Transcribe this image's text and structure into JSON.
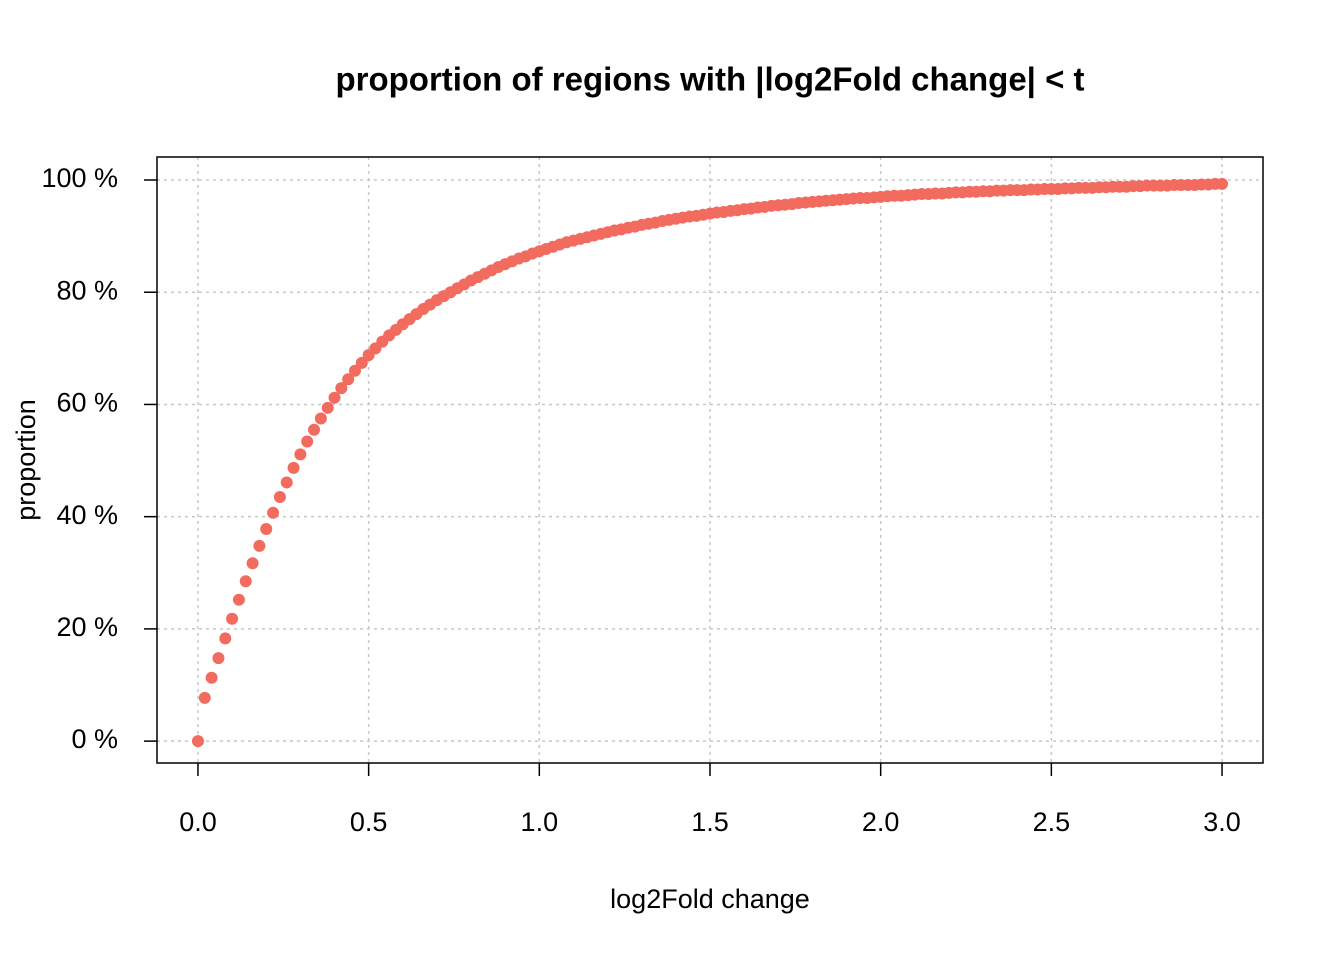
{
  "chart_data": {
    "type": "scatter",
    "title": "proportion of regions with |log2Fold change| < t",
    "xlabel": "log2Fold change",
    "ylabel": "proportion",
    "color": "#f26b5f",
    "grid": true,
    "xlim": [
      -0.12,
      3.12
    ],
    "ylim": [
      -3.9,
      104.1
    ],
    "xticks": [
      {
        "value": 0,
        "label": "0.0"
      },
      0.5,
      {
        "value": 1,
        "label": "1.0"
      },
      1.5,
      {
        "value": 2,
        "label": "2.0"
      },
      2.5,
      {
        "value": 3,
        "label": "3.0"
      }
    ],
    "yticks": [
      {
        "value": 0,
        "label": "0 %"
      },
      {
        "value": 20,
        "label": "20 %"
      },
      {
        "value": 40,
        "label": "40 %"
      },
      {
        "value": 60,
        "label": "60 %"
      },
      {
        "value": 80,
        "label": "80 %"
      },
      {
        "value": 100,
        "label": "100 %"
      }
    ],
    "x": [
      0,
      0.02,
      0.04,
      0.06,
      0.08,
      0.1,
      0.12,
      0.14,
      0.16,
      0.18,
      0.2,
      0.22,
      0.24,
      0.26,
      0.28,
      0.3,
      0.32,
      0.34,
      0.36,
      0.38,
      0.4,
      0.42,
      0.44,
      0.46,
      0.48,
      0.5,
      0.52,
      0.54,
      0.56,
      0.58,
      0.6,
      0.62,
      0.64,
      0.66,
      0.68,
      0.7,
      0.72,
      0.74,
      0.76,
      0.78,
      0.8,
      0.82,
      0.84,
      0.86,
      0.88,
      0.9,
      0.92,
      0.94,
      0.96,
      0.98,
      1,
      1.02,
      1.04,
      1.06,
      1.08,
      1.1,
      1.12,
      1.14,
      1.16,
      1.18,
      1.2,
      1.22,
      1.24,
      1.26,
      1.28,
      1.3,
      1.32,
      1.34,
      1.36,
      1.38,
      1.4,
      1.42,
      1.44,
      1.46,
      1.48,
      1.5,
      1.52,
      1.54,
      1.56,
      1.58,
      1.6,
      1.62,
      1.64,
      1.66,
      1.68,
      1.7,
      1.72,
      1.74,
      1.76,
      1.78,
      1.8,
      1.82,
      1.84,
      1.86,
      1.88,
      1.9,
      1.92,
      1.94,
      1.96,
      1.98,
      2,
      2.02,
      2.04,
      2.06,
      2.08,
      2.1,
      2.12,
      2.14,
      2.16,
      2.18,
      2.2,
      2.22,
      2.24,
      2.26,
      2.28,
      2.3,
      2.32,
      2.34,
      2.36,
      2.38,
      2.4,
      2.42,
      2.44,
      2.46,
      2.48,
      2.5,
      2.52,
      2.54,
      2.56,
      2.58,
      2.6,
      2.62,
      2.64,
      2.66,
      2.68,
      2.7,
      2.72,
      2.74,
      2.76,
      2.78,
      2.8,
      2.82,
      2.84,
      2.86,
      2.88,
      2.9,
      2.92,
      2.94,
      2.96,
      2.98,
      3
    ],
    "values": [
      0,
      7.7,
      11.3,
      14.8,
      18.3,
      21.8,
      25.2,
      28.5,
      31.7,
      34.8,
      37.8,
      40.7,
      43.5,
      46.1,
      48.7,
      51.1,
      53.4,
      55.5,
      57.5,
      59.4,
      61.2,
      62.9,
      64.5,
      66.0,
      67.4,
      68.8,
      70.0,
      71.2,
      72.3,
      73.3,
      74.3,
      75.2,
      76.1,
      77.0,
      77.8,
      78.6,
      79.3,
      80.0,
      80.7,
      81.4,
      82.1,
      82.7,
      83.3,
      83.9,
      84.5,
      85.0,
      85.5,
      86.0,
      86.4,
      86.9,
      87.3,
      87.7,
      88.1,
      88.5,
      88.9,
      89.2,
      89.5,
      89.8,
      90.1,
      90.4,
      90.7,
      91.0,
      91.2,
      91.5,
      91.7,
      92.0,
      92.2,
      92.4,
      92.7,
      92.9,
      93.1,
      93.3,
      93.5,
      93.6,
      93.8,
      94.0,
      94.2,
      94.3,
      94.5,
      94.6,
      94.8,
      94.9,
      95.1,
      95.2,
      95.4,
      95.5,
      95.6,
      95.7,
      95.9,
      96.0,
      96.1,
      96.2,
      96.3,
      96.4,
      96.5,
      96.6,
      96.7,
      96.8,
      96.8,
      96.9,
      97.0,
      97.1,
      97.2,
      97.2,
      97.3,
      97.4,
      97.5,
      97.5,
      97.6,
      97.6,
      97.7,
      97.8,
      97.8,
      97.9,
      97.9,
      98.0,
      98.0,
      98.1,
      98.1,
      98.2,
      98.2,
      98.2,
      98.3,
      98.3,
      98.4,
      98.4,
      98.4,
      98.5,
      98.5,
      98.6,
      98.6,
      98.6,
      98.7,
      98.7,
      98.8,
      98.8,
      98.8,
      98.9,
      98.9,
      99.0,
      99.0,
      99.0,
      99.0,
      99.1,
      99.1,
      99.1,
      99.1,
      99.2,
      99.2,
      99.3,
      99.3
    ]
  }
}
